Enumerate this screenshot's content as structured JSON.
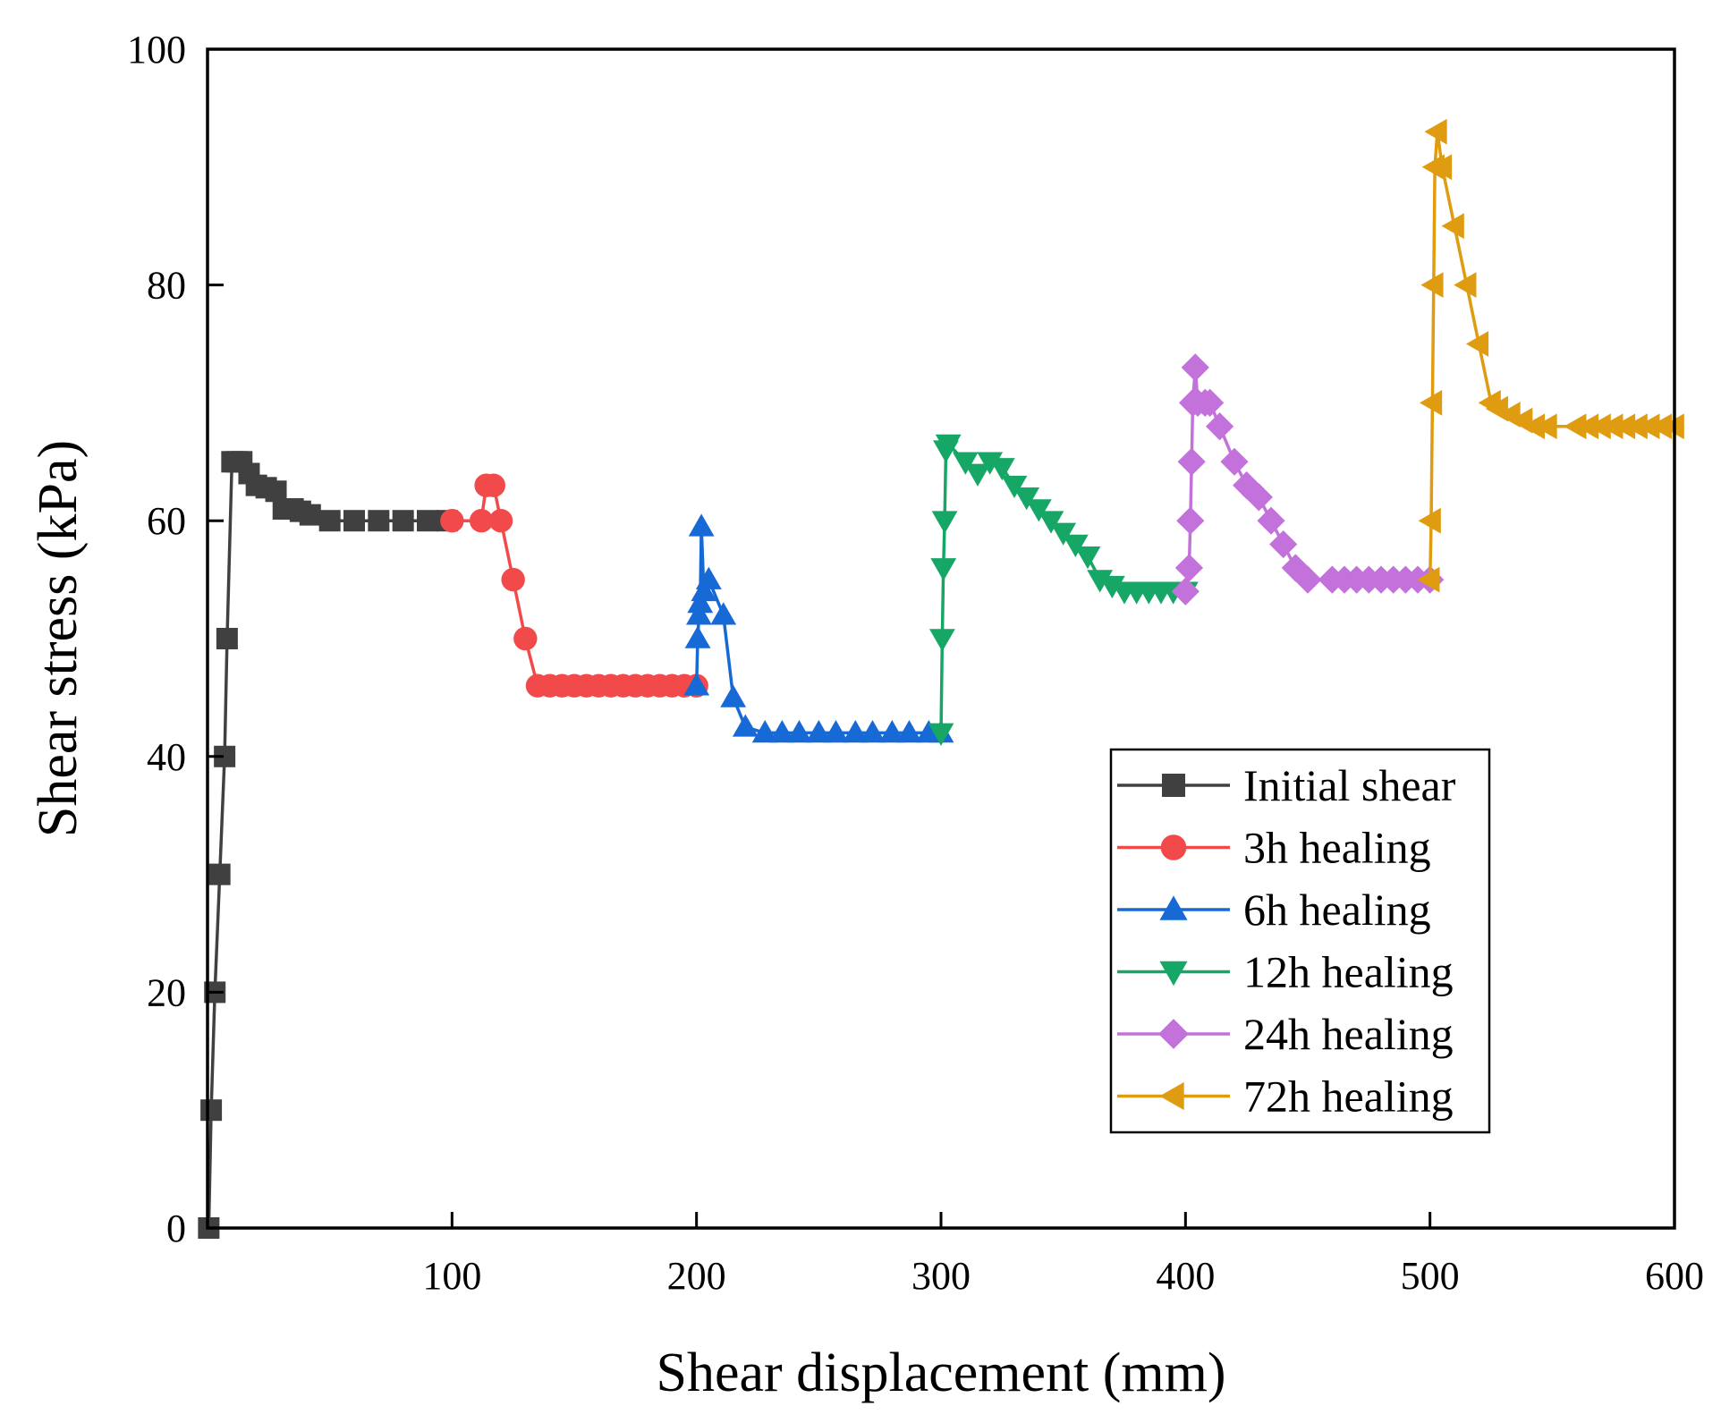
{
  "chart_data": {
    "type": "line",
    "title": "",
    "xlabel": "Shear displacement (mm)",
    "ylabel": "Shear stress (kPa)",
    "xlim": [
      0,
      600
    ],
    "ylim": [
      0,
      100
    ],
    "x_ticks": [
      100,
      200,
      300,
      400,
      500,
      600
    ],
    "y_ticks": [
      0,
      20,
      40,
      60,
      80,
      100
    ],
    "grid": false,
    "legend_position": "lower-right",
    "series": [
      {
        "name": "Initial shear",
        "color": "#404040",
        "marker": "square",
        "x": [
          0.5,
          1.5,
          3,
          5,
          7,
          8,
          10,
          12,
          14,
          17,
          20,
          24,
          28,
          31,
          35,
          38,
          42,
          50,
          60,
          70,
          80,
          90,
          98
        ],
        "y": [
          0,
          10,
          20,
          30,
          40,
          50,
          65,
          65,
          65,
          64,
          63,
          62.8,
          62.5,
          61,
          61,
          60.8,
          60.5,
          60,
          60,
          60,
          60,
          60,
          60
        ]
      },
      {
        "name": "3h healing",
        "color": "#f24a4a",
        "marker": "circle",
        "x": [
          100,
          112,
          114,
          117,
          120,
          125,
          130,
          135,
          140,
          145,
          150,
          155,
          160,
          165,
          170,
          175,
          180,
          185,
          190,
          195,
          200
        ],
        "y": [
          60,
          60,
          63,
          63,
          60,
          55,
          50,
          46,
          46,
          46,
          46,
          46,
          46,
          46,
          46,
          46,
          46,
          46,
          46,
          46,
          46
        ]
      },
      {
        "name": "6h healing",
        "color": "#1769d6",
        "marker": "triangle-up",
        "x": [
          200,
          200.5,
          201,
          201.5,
          202,
          203,
          205,
          211,
          215,
          220,
          228,
          235,
          242,
          250,
          257,
          265,
          272,
          280,
          287,
          295,
          300
        ],
        "y": [
          46,
          50,
          52,
          53,
          59.5,
          54,
          55,
          52,
          45,
          42.5,
          42,
          42,
          42,
          42,
          42,
          42,
          42,
          42,
          42,
          42,
          42
        ]
      },
      {
        "name": "12h healing",
        "color": "#16a665",
        "marker": "triangle-down",
        "x": [
          300,
          300.5,
          301,
          301.5,
          302,
          303,
          310,
          315,
          320,
          325,
          330,
          335,
          340,
          345,
          350,
          355,
          360,
          365,
          370,
          375,
          380,
          385,
          390,
          395,
          400
        ],
        "y": [
          42,
          50,
          56,
          60,
          66,
          66.5,
          65,
          64,
          65,
          64.5,
          63,
          62,
          61,
          60,
          59,
          58,
          57,
          55,
          54.5,
          54,
          54,
          54,
          54,
          54,
          54
        ]
      },
      {
        "name": "24h healing",
        "color": "#c372db",
        "marker": "diamond",
        "x": [
          400,
          401.5,
          402,
          402.5,
          403,
          404,
          405,
          408,
          410,
          414,
          420,
          425,
          430,
          435,
          440,
          445,
          450,
          460,
          465,
          470,
          475,
          480,
          485,
          490,
          495,
          500
        ],
        "y": [
          54,
          56,
          60,
          65,
          70,
          73,
          70,
          70,
          70,
          68,
          65,
          63,
          62,
          60,
          58,
          56,
          55,
          55,
          55,
          55,
          55,
          55,
          55,
          55,
          55,
          55
        ]
      },
      {
        "name": "72h healing",
        "color": "#e09c10",
        "marker": "triangle-left",
        "x": [
          500,
          500.5,
          501,
          501.5,
          502,
          503,
          505,
          510,
          515,
          520,
          525,
          528,
          533,
          538,
          543,
          548,
          560,
          565,
          570,
          575,
          580,
          585,
          590,
          595,
          600
        ],
        "y": [
          55,
          60,
          70,
          80,
          90,
          93,
          90,
          85,
          80,
          75,
          70,
          69.5,
          69,
          68.5,
          68,
          68,
          68,
          68,
          68,
          68,
          68,
          68,
          68,
          68,
          68
        ]
      }
    ]
  }
}
